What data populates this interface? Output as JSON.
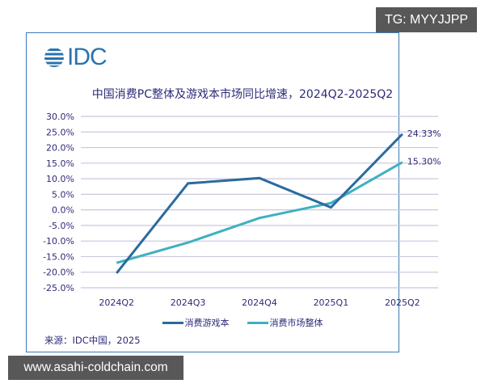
{
  "watermarks": {
    "top_right": "TG: MYYJJPP",
    "bottom_left": "www.asahi-coldchain.com"
  },
  "logo": {
    "text": "IDC",
    "icon": "globe-stripes-icon",
    "color": "#2a73ae"
  },
  "source_note": "来源：IDC中国，2025",
  "colors": {
    "gaming": "#2a6b9e",
    "market": "#3fb0c0",
    "grid": "#c8c8e0",
    "text": "#2e2a78",
    "border": "#3b7ab8"
  },
  "chart_data": {
    "type": "line",
    "title": "中国消费PC整体及游戏本市场同比增速，2024Q2-2025Q2",
    "xlabel": "",
    "ylabel": "",
    "categories": [
      "2024Q2",
      "2024Q3",
      "2024Q4",
      "2025Q1",
      "2025Q2"
    ],
    "yticks": [
      "30.0%",
      "25.0%",
      "20.0%",
      "15.0%",
      "10.0%",
      "5.0%",
      "0.0%",
      "-5.0%",
      "-10.0%",
      "-15.0%",
      "-20.0%",
      "-25.0%"
    ],
    "ylim": [
      -25,
      30
    ],
    "grid": true,
    "legend_position": "bottom",
    "series": [
      {
        "name": "消费游戏本",
        "values": [
          -20.3,
          8.5,
          10.2,
          0.8,
          24.33
        ],
        "end_label": "24.33%"
      },
      {
        "name": "消费市场整体",
        "values": [
          -17.0,
          -10.5,
          -2.6,
          2.2,
          15.3
        ],
        "end_label": "15.30%"
      }
    ]
  }
}
